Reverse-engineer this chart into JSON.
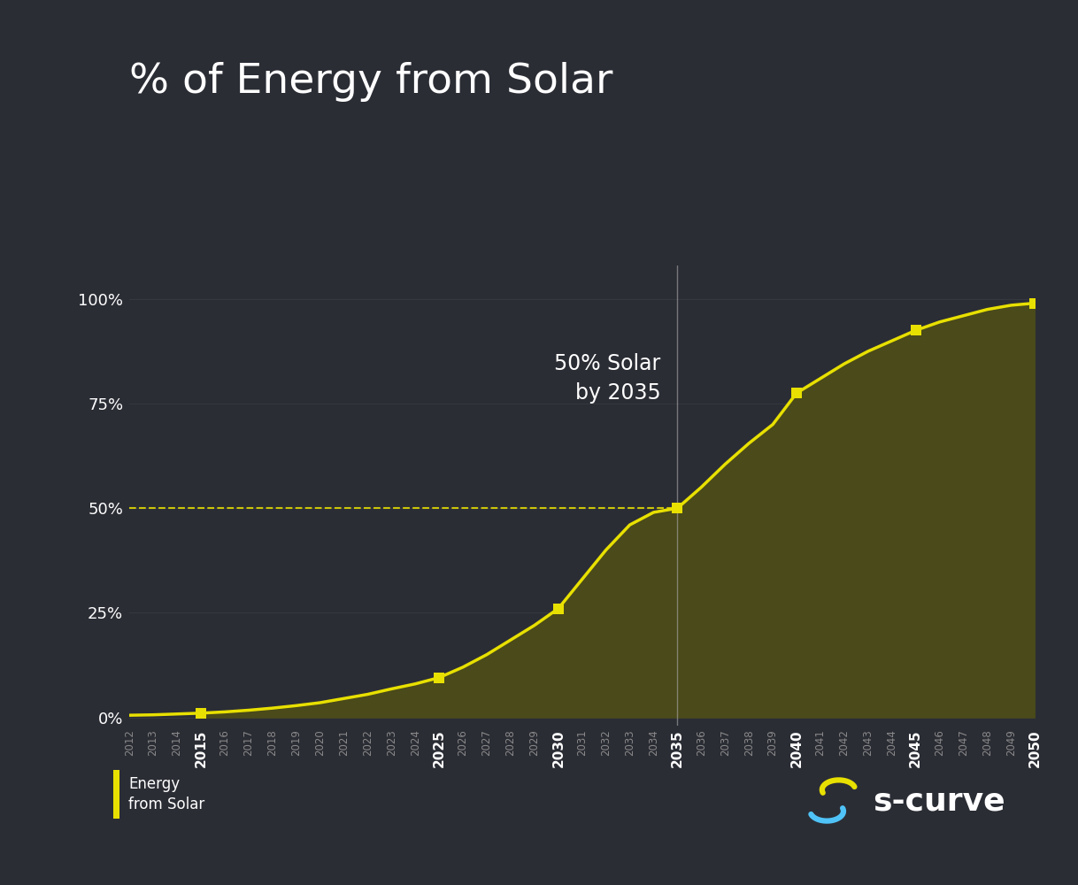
{
  "title": "% of Energy from Solar",
  "background_color": "#2b2d35",
  "line_color": "#e8e000",
  "fill_color": "#4a4a1a",
  "text_color": "#ffffff",
  "annotation_text": "50% Solar\nby 2035",
  "annotation_year": 2035,
  "annotation_pct": 50,
  "dashed_line_color": "#e8e000",
  "vline_color": "#aaaaaa",
  "legend_label": "Energy\nfrom Solar",
  "brand_text": "s-curve",
  "ytick_labels": [
    "0%",
    "25%",
    "50%",
    "75%",
    "100%"
  ],
  "ytick_values": [
    0,
    25,
    50,
    75,
    100
  ],
  "highlighted_years": [
    2015,
    2025,
    2030,
    2035,
    2040,
    2045,
    2050
  ],
  "years": [
    2012,
    2013,
    2014,
    2015,
    2016,
    2017,
    2018,
    2019,
    2020,
    2021,
    2022,
    2023,
    2024,
    2025,
    2026,
    2027,
    2028,
    2029,
    2030,
    2031,
    2032,
    2033,
    2034,
    2035,
    2036,
    2037,
    2038,
    2039,
    2040,
    2041,
    2042,
    2043,
    2044,
    2045,
    2046,
    2047,
    2048,
    2049,
    2050
  ],
  "values": [
    0.5,
    0.6,
    0.8,
    1.0,
    1.3,
    1.7,
    2.2,
    2.8,
    3.5,
    4.5,
    5.5,
    6.8,
    8.0,
    9.5,
    12.0,
    15.0,
    18.5,
    22.0,
    26.0,
    33.0,
    40.0,
    46.0,
    49.0,
    50.0,
    55.0,
    60.5,
    65.5,
    70.0,
    77.5,
    81.0,
    84.5,
    87.5,
    90.0,
    92.5,
    94.5,
    96.0,
    97.5,
    98.5,
    99.0
  ],
  "marker_years": [
    2015,
    2025,
    2030,
    2035,
    2040,
    2045,
    2050
  ],
  "marker_values": [
    1.0,
    9.5,
    26.0,
    50.0,
    77.5,
    92.5,
    99.0
  ],
  "logo_yellow": "#e8e000",
  "logo_blue": "#4fc3f7"
}
